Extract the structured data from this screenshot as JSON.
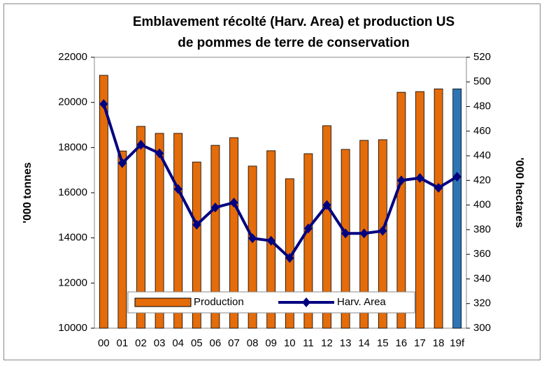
{
  "chart_data": {
    "type": "bar-line",
    "title": [
      "Emblavement récolté (Harv. Area) et production US",
      "de pommes de terre de conservation"
    ],
    "ylabel": "'000 tonnes",
    "y2label": "'000 hectares",
    "categories": [
      "00",
      "01",
      "02",
      "03",
      "04",
      "05",
      "06",
      "07",
      "08",
      "09",
      "10",
      "11",
      "12",
      "13",
      "14",
      "15",
      "16",
      "17",
      "18",
      "19f"
    ],
    "series": [
      {
        "name": "Production",
        "type": "bar",
        "color": "#e46c0a",
        "colors": [
          "#e46c0a",
          "#e46c0a",
          "#e46c0a",
          "#e46c0a",
          "#e46c0a",
          "#e46c0a",
          "#e46c0a",
          "#e46c0a",
          "#e46c0a",
          "#e46c0a",
          "#e46c0a",
          "#e46c0a",
          "#e46c0a",
          "#e46c0a",
          "#e46c0a",
          "#e46c0a",
          "#e46c0a",
          "#e46c0a",
          "#e46c0a",
          "#2e75b6"
        ],
        "values": [
          21200,
          17850,
          18940,
          18630,
          18630,
          17360,
          18100,
          18440,
          17180,
          17860,
          16620,
          17730,
          18970,
          17920,
          18320,
          18350,
          20450,
          20480,
          20600,
          20600
        ]
      },
      {
        "name": "Harv. Area",
        "type": "line",
        "axis": "y2",
        "color": "#000080",
        "values": [
          482,
          434,
          449,
          442,
          413,
          384,
          398,
          402,
          373,
          371,
          357,
          381,
          400,
          377,
          377,
          379,
          420,
          422,
          414,
          423
        ]
      }
    ],
    "ylim": [
      10000,
      22000
    ],
    "yticks": [
      10000,
      12000,
      14000,
      16000,
      18000,
      20000,
      22000
    ],
    "y2lim": [
      300,
      520
    ],
    "y2ticks": [
      300,
      320,
      340,
      360,
      380,
      400,
      420,
      440,
      460,
      480,
      500,
      520
    ],
    "grid": false,
    "legend": "bottom"
  }
}
